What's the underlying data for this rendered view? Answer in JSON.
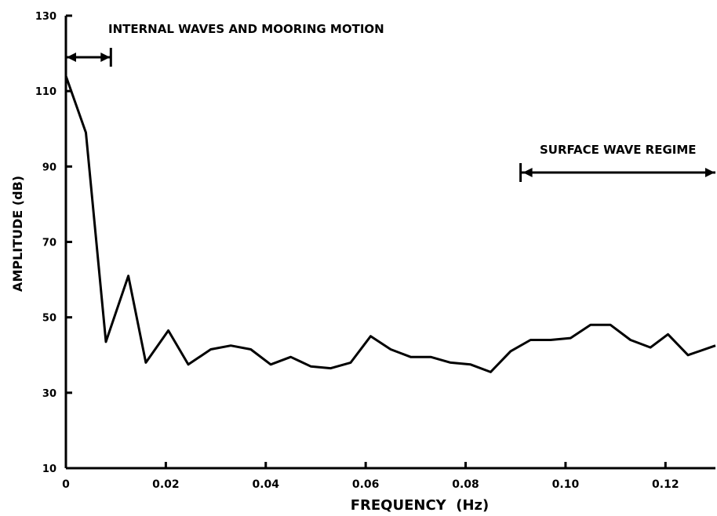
{
  "chart_data": {
    "type": "line",
    "title": "",
    "xlabel": "FREQUENCY  (Hz)",
    "ylabel": "AMPLITUDE (dB)",
    "xlim": [
      0,
      0.13
    ],
    "ylim": [
      10,
      130
    ],
    "x_ticks": [
      0,
      0.02,
      0.04,
      0.06,
      0.08,
      0.1,
      0.12
    ],
    "x_tick_labels": [
      "0",
      "0.02",
      "0.04",
      "0.06",
      "0.08",
      "0.10",
      "0.12"
    ],
    "y_ticks": [
      10,
      30,
      50,
      70,
      90,
      110,
      130
    ],
    "y_tick_labels": [
      "10",
      "30",
      "50",
      "70",
      "90",
      "110",
      "130"
    ],
    "grid": false,
    "series": [
      {
        "x": [
          0,
          0.004,
          0.008,
          0.0125,
          0.016,
          0.0205,
          0.0245,
          0.029,
          0.033,
          0.037,
          0.041,
          0.045,
          0.049,
          0.053,
          0.057,
          0.061,
          0.065,
          0.069,
          0.073,
          0.077,
          0.081,
          0.085,
          0.089,
          0.093,
          0.097,
          0.101,
          0.105,
          0.109,
          0.113,
          0.117,
          0.1205,
          0.1245,
          0.13
        ],
        "values": [
          114,
          99,
          43.5,
          61,
          38,
          46.5,
          37.5,
          41.5,
          42.5,
          41.5,
          37.5,
          39.5,
          37,
          36.5,
          38,
          45,
          41.5,
          39.5,
          39.5,
          38,
          37.5,
          35.5,
          41,
          44,
          44,
          44.5,
          48,
          48,
          44,
          42,
          45.5,
          40,
          42.5
        ]
      }
    ],
    "annotations": [
      {
        "text": "INTERNAL WAVES AND MOORING MOTION",
        "x_range": [
          0,
          0.009
        ]
      },
      {
        "text": "SURFACE WAVE REGIME",
        "x_range": [
          0.091,
          0.13
        ]
      }
    ]
  }
}
